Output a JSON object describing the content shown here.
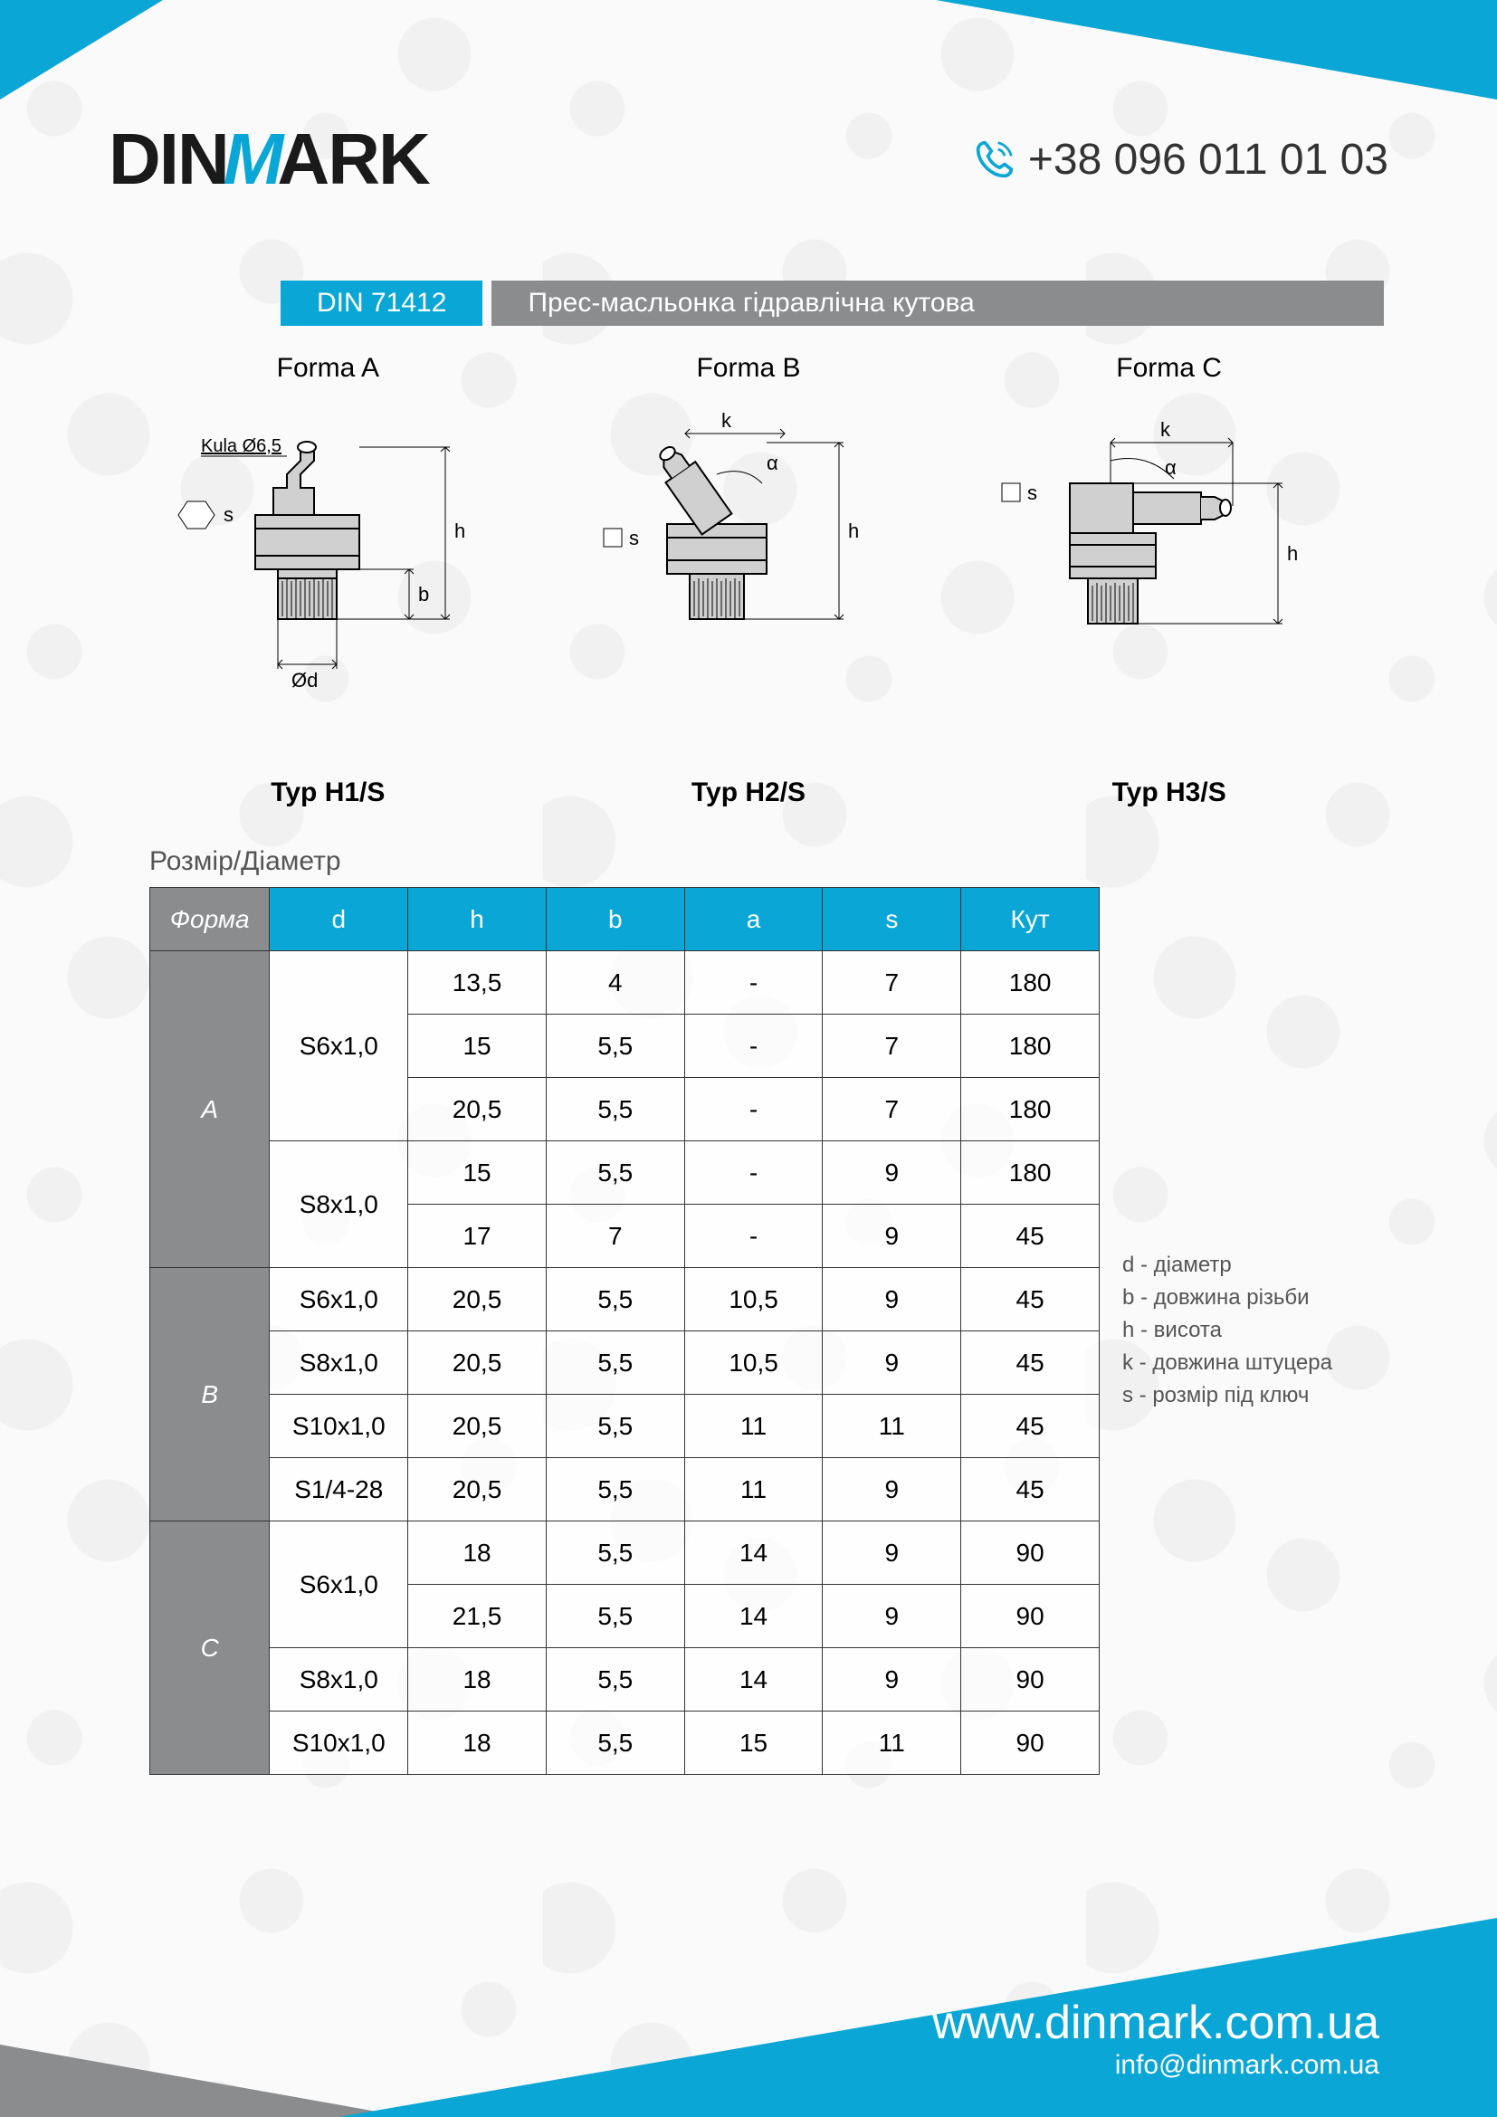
{
  "colors": {
    "accent": "#0aa6d6",
    "gray": "#8b8c8e",
    "dark": "#1a1a1a",
    "white": "#ffffff"
  },
  "logo": {
    "pre": "DIN",
    "mid": "M",
    "post": "ARK",
    "mid_color": "#0aa6d6",
    "text_color": "#1a1a1a"
  },
  "phone": "+38 096 011 01 03",
  "din_code": "DIN 71412",
  "description": "Прес-масльонка гідравлічна кутова",
  "drawings": {
    "formaA": {
      "label": "Forma A",
      "type": "Typ H1/S"
    },
    "formaB": {
      "label": "Forma B",
      "type": "Typ H2/S"
    },
    "formaC": {
      "label": "Forma C",
      "type": "Typ H3/S"
    }
  },
  "table_title": "Розмір/Діаметр",
  "table": {
    "columns": [
      "Форма",
      "d",
      "h",
      "b",
      "a",
      "s",
      "Кут"
    ],
    "col_widths": [
      "130px",
      "150px",
      "150px",
      "150px",
      "150px",
      "150px",
      "150px"
    ],
    "header_bg_first": "#8b8c8e",
    "header_bg_rest": "#0aa6d6",
    "groups": [
      {
        "forma": "A",
        "bg": "#8b8c8e",
        "subgroups": [
          {
            "d": "S6x1,0",
            "rows": [
              [
                "13,5",
                "4",
                "-",
                "7",
                "180"
              ],
              [
                "15",
                "5,5",
                "-",
                "7",
                "180"
              ],
              [
                "20,5",
                "5,5",
                "-",
                "7",
                "180"
              ]
            ]
          },
          {
            "d": "S8x1,0",
            "rows": [
              [
                "15",
                "5,5",
                "-",
                "9",
                "180"
              ],
              [
                "17",
                "7",
                "-",
                "9",
                "45"
              ]
            ]
          }
        ]
      },
      {
        "forma": "B",
        "bg": "#8b8c8e",
        "subgroups": [
          {
            "d": "S6x1,0",
            "rows": [
              [
                "20,5",
                "5,5",
                "10,5",
                "9",
                "45"
              ]
            ]
          },
          {
            "d": "S8x1,0",
            "rows": [
              [
                "20,5",
                "5,5",
                "10,5",
                "9",
                "45"
              ]
            ]
          },
          {
            "d": "S10x1,0",
            "rows": [
              [
                "20,5",
                "5,5",
                "11",
                "11",
                "45"
              ]
            ]
          },
          {
            "d": "S1/4-28",
            "rows": [
              [
                "20,5",
                "5,5",
                "11",
                "9",
                "45"
              ]
            ]
          }
        ]
      },
      {
        "forma": "C",
        "bg": "#8b8c8e",
        "subgroups": [
          {
            "d": "S6x1,0",
            "rows": [
              [
                "18",
                "5,5",
                "14",
                "9",
                "90"
              ],
              [
                "21,5",
                "5,5",
                "14",
                "9",
                "90"
              ]
            ]
          },
          {
            "d": "S8x1,0",
            "rows": [
              [
                "18",
                "5,5",
                "14",
                "9",
                "90"
              ]
            ]
          },
          {
            "d": "S10x1,0",
            "rows": [
              [
                "18",
                "5,5",
                "15",
                "11",
                "90"
              ]
            ]
          }
        ]
      }
    ]
  },
  "legend": [
    "d - діаметр",
    "b - довжина різьби",
    "h - висота",
    "k - довжина штуцера",
    "s - розмір під ключ"
  ],
  "footer": {
    "url": "www.dinmark.com.ua",
    "email": "info@dinmark.com.ua"
  }
}
